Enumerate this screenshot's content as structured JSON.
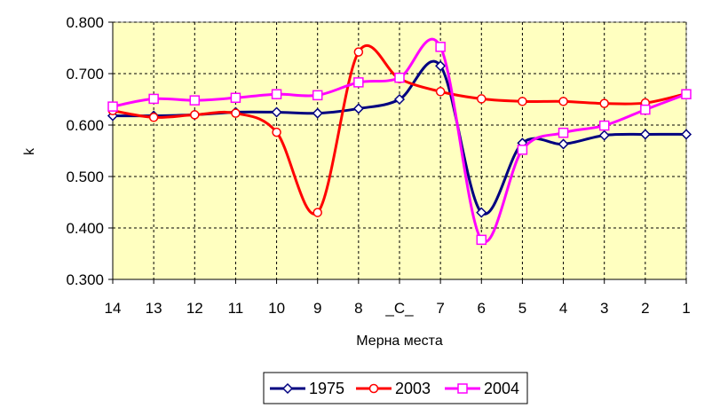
{
  "chart_data": {
    "type": "line",
    "title": "",
    "xlabel": "Мерна места",
    "ylabel": "k",
    "categories": [
      "14",
      "13",
      "12",
      "11",
      "10",
      "9",
      "8",
      "_C_",
      "7",
      "6",
      "5",
      "4",
      "3",
      "2",
      "1"
    ],
    "ylim": [
      0.3,
      0.8
    ],
    "yticks": [
      "0.300",
      "0.400",
      "0.500",
      "0.600",
      "0.700",
      "0.800"
    ],
    "grid": true,
    "legend_position": "bottom",
    "series": [
      {
        "name": "1975",
        "color": "#000080",
        "marker": "diamond",
        "values": [
          0.618,
          0.618,
          0.62,
          0.625,
          0.625,
          0.623,
          0.632,
          0.65,
          0.715,
          0.43,
          0.565,
          0.563,
          0.58,
          0.582,
          0.582
        ]
      },
      {
        "name": "2003",
        "color": "#ff0000",
        "marker": "circle",
        "values": [
          0.628,
          0.615,
          0.62,
          0.623,
          0.586,
          0.43,
          0.742,
          0.69,
          0.665,
          0.651,
          0.646,
          0.646,
          0.642,
          0.643,
          0.661
        ]
      },
      {
        "name": "2004",
        "color": "#ff00ff",
        "marker": "square",
        "values": [
          0.636,
          0.651,
          0.648,
          0.653,
          0.66,
          0.658,
          0.683,
          0.692,
          0.752,
          0.377,
          0.552,
          0.585,
          0.599,
          0.63,
          0.66
        ]
      }
    ]
  },
  "colors": {
    "plot_background": "#ffffc0",
    "gridline": "#000000"
  }
}
